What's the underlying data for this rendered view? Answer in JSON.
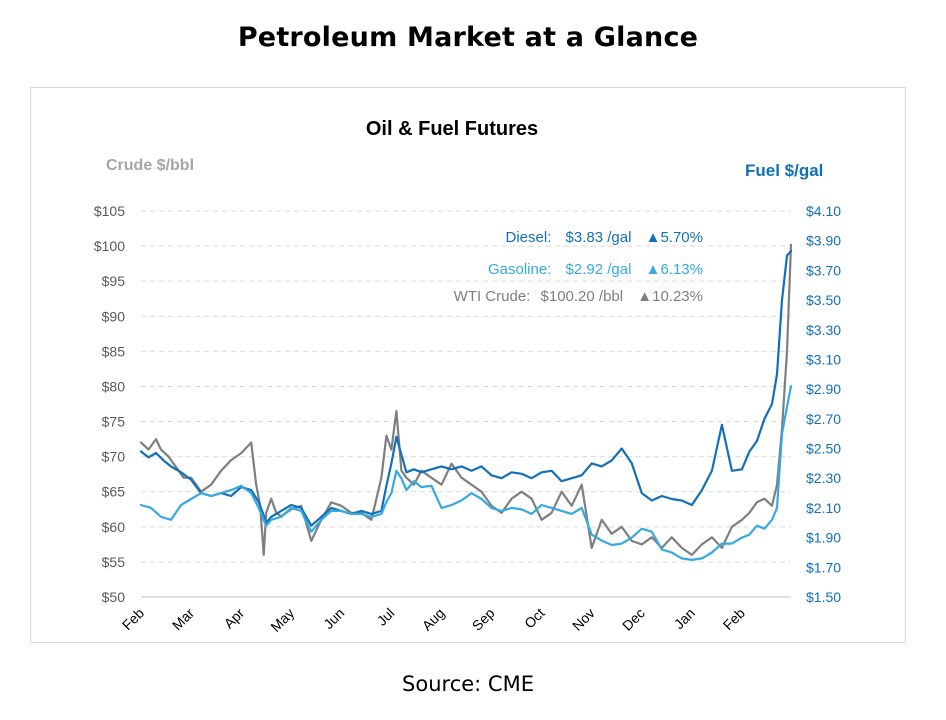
{
  "page": {
    "title": "Petroleum Market at a Glance",
    "source": "Source: CME"
  },
  "colors": {
    "diesel": "#1170b8",
    "gasoline": "#36a9e1",
    "crude": "#7f7f7f",
    "grid": "#d9d9d9",
    "left_axis_label": "#a6a6a6",
    "right_axis_label": "#1170b8"
  },
  "chart_data": {
    "type": "line",
    "title": "Oil & Fuel Futures",
    "left_axis": {
      "label": "Crude $/bbl",
      "min": 50,
      "max": 105,
      "ticks": [
        "$105",
        "$100",
        "$95",
        "$90",
        "$85",
        "$80",
        "$75",
        "$70",
        "$65",
        "$60",
        "$55",
        "$50"
      ]
    },
    "right_axis": {
      "label": "Fuel $/gal",
      "min": 1.5,
      "max": 4.1,
      "ticks": [
        "$4.10",
        "$3.90",
        "$3.70",
        "$3.50",
        "$3.30",
        "$3.10",
        "$2.90",
        "$2.70",
        "$2.50",
        "$2.30",
        "$2.10",
        "$1.90",
        "$1.70",
        "$1.50"
      ]
    },
    "x_axis": {
      "months": [
        "Feb",
        "Mar",
        "Apr",
        "May",
        "Jun",
        "Jul",
        "Aug",
        "Sep",
        "Oct",
        "Nov",
        "Dec",
        "Jan",
        "Feb"
      ],
      "range": [
        0,
        12.98
      ]
    },
    "grid": "horizontal-dashed",
    "legend": [
      {
        "name": "Diesel:",
        "value": "$3.83 /gal",
        "change": "▲5.70%",
        "series": "diesel"
      },
      {
        "name": "Gasoline:",
        "value": "$2.92 /gal",
        "change": "▲6.13%",
        "series": "gasoline"
      },
      {
        "name": "WTI Crude:",
        "value": "$100.20 /bbl",
        "change": "▲10.23%",
        "series": "crude"
      }
    ],
    "series": [
      {
        "key": "crude",
        "axis": "left",
        "x": [
          0,
          0.15,
          0.3,
          0.4,
          0.55,
          0.7,
          0.85,
          1.0,
          1.2,
          1.4,
          1.6,
          1.8,
          2.0,
          2.2,
          2.3,
          2.38,
          2.45,
          2.5,
          2.6,
          2.7,
          2.8,
          3.0,
          3.2,
          3.4,
          3.6,
          3.8,
          4.0,
          4.2,
          4.4,
          4.6,
          4.8,
          4.9,
          5.0,
          5.1,
          5.2,
          5.3,
          5.45,
          5.6,
          5.8,
          6.0,
          6.2,
          6.4,
          6.6,
          6.8,
          7.0,
          7.2,
          7.4,
          7.6,
          7.8,
          8.0,
          8.2,
          8.4,
          8.6,
          8.8,
          9.0,
          9.2,
          9.4,
          9.6,
          9.8,
          10.0,
          10.2,
          10.4,
          10.6,
          10.8,
          11.0,
          11.2,
          11.4,
          11.6,
          11.8,
          12.0,
          12.15,
          12.3,
          12.45,
          12.6,
          12.7,
          12.8,
          12.9,
          12.98
        ],
        "y": [
          72,
          71,
          72.5,
          71,
          70,
          68.5,
          67,
          67,
          65,
          66,
          68,
          69.5,
          70.5,
          72,
          66,
          63,
          56,
          62,
          64,
          62,
          61.5,
          62.5,
          63,
          58,
          61,
          63.5,
          63,
          62,
          62,
          61,
          67,
          73,
          71,
          76.5,
          68,
          67,
          66,
          68,
          67,
          66,
          69,
          67,
          66,
          65,
          63,
          62,
          64,
          65,
          64,
          61,
          62,
          65,
          63,
          66,
          57,
          61,
          59,
          60,
          58,
          57.5,
          58.5,
          57,
          58.5,
          57,
          56,
          57.5,
          58.5,
          57,
          60,
          61,
          62,
          63.5,
          64,
          63,
          66,
          74,
          85,
          100.2
        ]
      },
      {
        "key": "diesel",
        "axis": "right",
        "x": [
          0,
          0.15,
          0.3,
          0.45,
          0.6,
          0.8,
          1.0,
          1.2,
          1.4,
          1.6,
          1.8,
          2.0,
          2.2,
          2.35,
          2.45,
          2.5,
          2.6,
          2.8,
          3.0,
          3.2,
          3.4,
          3.6,
          3.8,
          4.0,
          4.2,
          4.4,
          4.6,
          4.8,
          4.9,
          5.0,
          5.1,
          5.2,
          5.3,
          5.45,
          5.6,
          5.8,
          6.0,
          6.2,
          6.4,
          6.6,
          6.8,
          7.0,
          7.2,
          7.4,
          7.6,
          7.8,
          8.0,
          8.2,
          8.4,
          8.6,
          8.8,
          9.0,
          9.2,
          9.4,
          9.6,
          9.8,
          10.0,
          10.2,
          10.4,
          10.6,
          10.8,
          11.0,
          11.2,
          11.4,
          11.6,
          11.8,
          12.0,
          12.15,
          12.3,
          12.45,
          12.6,
          12.7,
          12.8,
          12.9,
          12.98
        ],
        "y": [
          2.48,
          2.44,
          2.47,
          2.42,
          2.38,
          2.34,
          2.29,
          2.2,
          2.18,
          2.2,
          2.18,
          2.24,
          2.22,
          2.14,
          2.05,
          2.0,
          2.04,
          2.08,
          2.12,
          2.1,
          1.98,
          2.04,
          2.1,
          2.08,
          2.06,
          2.08,
          2.06,
          2.08,
          2.25,
          2.4,
          2.58,
          2.46,
          2.34,
          2.36,
          2.34,
          2.36,
          2.38,
          2.36,
          2.38,
          2.35,
          2.38,
          2.32,
          2.3,
          2.34,
          2.33,
          2.3,
          2.34,
          2.35,
          2.28,
          2.3,
          2.32,
          2.4,
          2.38,
          2.42,
          2.5,
          2.4,
          2.2,
          2.15,
          2.18,
          2.16,
          2.15,
          2.12,
          2.22,
          2.35,
          2.66,
          2.35,
          2.36,
          2.48,
          2.55,
          2.7,
          2.8,
          3.0,
          3.5,
          3.8,
          3.83
        ]
      },
      {
        "key": "gasoline",
        "axis": "right",
        "x": [
          0,
          0.2,
          0.4,
          0.6,
          0.8,
          1.0,
          1.2,
          1.4,
          1.6,
          1.8,
          2.0,
          2.2,
          2.35,
          2.45,
          2.5,
          2.6,
          2.8,
          3.0,
          3.2,
          3.4,
          3.6,
          3.8,
          4.0,
          4.2,
          4.4,
          4.6,
          4.8,
          4.9,
          5.0,
          5.1,
          5.2,
          5.3,
          5.45,
          5.6,
          5.8,
          6.0,
          6.2,
          6.4,
          6.6,
          6.8,
          7.0,
          7.2,
          7.4,
          7.6,
          7.8,
          8.0,
          8.2,
          8.4,
          8.6,
          8.8,
          9.0,
          9.2,
          9.4,
          9.6,
          9.8,
          10.0,
          10.2,
          10.4,
          10.6,
          10.8,
          11.0,
          11.2,
          11.4,
          11.6,
          11.8,
          12.0,
          12.15,
          12.3,
          12.45,
          12.6,
          12.7,
          12.8,
          12.9,
          12.98
        ],
        "y": [
          2.12,
          2.1,
          2.04,
          2.02,
          2.12,
          2.16,
          2.2,
          2.18,
          2.2,
          2.22,
          2.25,
          2.2,
          2.1,
          2.02,
          1.98,
          2.02,
          2.04,
          2.1,
          2.08,
          1.94,
          2.02,
          2.08,
          2.08,
          2.06,
          2.06,
          2.04,
          2.06,
          2.14,
          2.2,
          2.35,
          2.3,
          2.22,
          2.28,
          2.24,
          2.25,
          2.1,
          2.12,
          2.15,
          2.2,
          2.16,
          2.1,
          2.08,
          2.1,
          2.09,
          2.06,
          2.12,
          2.1,
          2.08,
          2.06,
          2.1,
          1.92,
          1.88,
          1.85,
          1.86,
          1.9,
          1.96,
          1.94,
          1.82,
          1.8,
          1.76,
          1.75,
          1.76,
          1.8,
          1.86,
          1.86,
          1.9,
          1.92,
          1.98,
          1.96,
          2.02,
          2.1,
          2.6,
          2.78,
          2.92
        ]
      }
    ]
  }
}
